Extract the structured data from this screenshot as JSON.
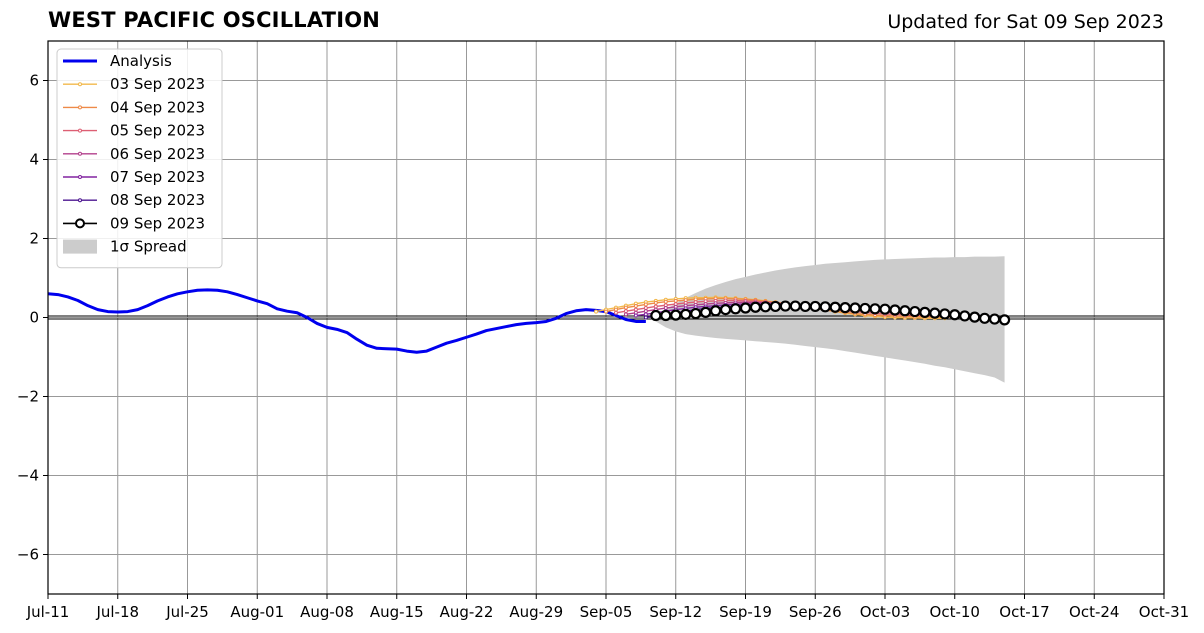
{
  "chart_data": {
    "type": "line",
    "title": "WEST PACIFIC OSCILLATION",
    "subtitle": "Updated for Sat 09 Sep 2023",
    "ylim": [
      -7,
      7
    ],
    "yticks": [
      6,
      4,
      2,
      0,
      -2,
      -4,
      -6
    ],
    "ytick_labels": [
      "6",
      "4",
      "2",
      "0",
      "−2",
      "−4",
      "−6"
    ],
    "xlim": [
      "2023-07-11",
      "2023-10-31"
    ],
    "xtick_labels": [
      "Jul-11",
      "Jul-18",
      "Jul-25",
      "Aug-01",
      "Aug-08",
      "Aug-15",
      "Aug-22",
      "Aug-29",
      "Sep-05",
      "Sep-12",
      "Sep-19",
      "Sep-26",
      "Oct-03",
      "Oct-10",
      "Oct-17",
      "Oct-24",
      "Oct-31"
    ],
    "grid": true,
    "legend_position": "top-left",
    "colors": {
      "analysis": "#0000ee",
      "spread": "#cccccc",
      "grid": "#999999"
    },
    "analysis": {
      "name": "Analysis",
      "dates": [
        "2023-07-11",
        "2023-07-12",
        "2023-07-13",
        "2023-07-14",
        "2023-07-15",
        "2023-07-16",
        "2023-07-17",
        "2023-07-18",
        "2023-07-19",
        "2023-07-20",
        "2023-07-21",
        "2023-07-22",
        "2023-07-23",
        "2023-07-24",
        "2023-07-25",
        "2023-07-26",
        "2023-07-27",
        "2023-07-28",
        "2023-07-29",
        "2023-07-30",
        "2023-07-31",
        "2023-08-01",
        "2023-08-02",
        "2023-08-03",
        "2023-08-04",
        "2023-08-05",
        "2023-08-06",
        "2023-08-07",
        "2023-08-08",
        "2023-08-09",
        "2023-08-10",
        "2023-08-11",
        "2023-08-12",
        "2023-08-13",
        "2023-08-14",
        "2023-08-15",
        "2023-08-16",
        "2023-08-17",
        "2023-08-18",
        "2023-08-19",
        "2023-08-20",
        "2023-08-21",
        "2023-08-22",
        "2023-08-23",
        "2023-08-24",
        "2023-08-25",
        "2023-08-26",
        "2023-08-27",
        "2023-08-28",
        "2023-08-29",
        "2023-08-30",
        "2023-08-31",
        "2023-09-01",
        "2023-09-02",
        "2023-09-03",
        "2023-09-04",
        "2023-09-05",
        "2023-09-06",
        "2023-09-07",
        "2023-09-08",
        "2023-09-09"
      ],
      "values": [
        0.6,
        0.58,
        0.52,
        0.43,
        0.3,
        0.2,
        0.15,
        0.14,
        0.15,
        0.2,
        0.3,
        0.42,
        0.52,
        0.6,
        0.65,
        0.69,
        0.7,
        0.69,
        0.65,
        0.58,
        0.5,
        0.42,
        0.35,
        0.22,
        0.16,
        0.12,
        0.0,
        -0.15,
        -0.25,
        -0.3,
        -0.38,
        -0.55,
        -0.7,
        -0.78,
        -0.79,
        -0.8,
        -0.85,
        -0.88,
        -0.85,
        -0.75,
        -0.65,
        -0.58,
        -0.5,
        -0.42,
        -0.33,
        -0.28,
        -0.23,
        -0.18,
        -0.15,
        -0.13,
        -0.1,
        -0.02,
        0.1,
        0.17,
        0.2,
        0.18,
        0.15,
        0.05,
        -0.05,
        -0.1,
        -0.1
      ]
    },
    "forecasts": [
      {
        "name": "03 Sep 2023",
        "color": "#f2b84b",
        "start": "2023-09-04",
        "values": [
          0.15,
          0.2,
          0.25,
          0.3,
          0.35,
          0.39,
          0.42,
          0.45,
          0.47,
          0.49,
          0.5,
          0.5,
          0.51,
          0.5,
          0.49,
          0.47,
          0.45,
          0.42,
          0.39,
          0.35,
          0.31,
          0.27,
          0.23,
          0.19,
          0.15,
          0.11,
          0.08,
          0.05,
          0.03,
          0.01,
          0.0,
          -0.01,
          -0.01,
          -0.02,
          -0.02,
          -0.02
        ]
      },
      {
        "name": "04 Sep 2023",
        "color": "#ee8a48",
        "start": "2023-09-05",
        "values": [
          0.15,
          0.2,
          0.25,
          0.29,
          0.33,
          0.37,
          0.4,
          0.42,
          0.44,
          0.46,
          0.47,
          0.48,
          0.48,
          0.47,
          0.46,
          0.44,
          0.41,
          0.38,
          0.35,
          0.31,
          0.27,
          0.23,
          0.19,
          0.16,
          0.13,
          0.1,
          0.08,
          0.06,
          0.05,
          0.04,
          0.03,
          0.02,
          0.02,
          0.01,
          0.01,
          0.01
        ]
      },
      {
        "name": "05 Sep 2023",
        "color": "#dd5f73",
        "start": "2023-09-06",
        "values": [
          0.12,
          0.16,
          0.2,
          0.24,
          0.28,
          0.31,
          0.34,
          0.37,
          0.39,
          0.41,
          0.42,
          0.43,
          0.43,
          0.42,
          0.41,
          0.39,
          0.37,
          0.35,
          0.32,
          0.29,
          0.26,
          0.23,
          0.2,
          0.17,
          0.15,
          0.13,
          0.11,
          0.09,
          0.08,
          0.07,
          0.06,
          0.05,
          0.05,
          0.04,
          0.04,
          0.04
        ]
      },
      {
        "name": "06 Sep 2023",
        "color": "#b23f8b",
        "start": "2023-09-07",
        "values": [
          0.08,
          0.12,
          0.16,
          0.2,
          0.24,
          0.27,
          0.3,
          0.32,
          0.34,
          0.36,
          0.37,
          0.38,
          0.38,
          0.38,
          0.37,
          0.36,
          0.34,
          0.32,
          0.3,
          0.28,
          0.26,
          0.24,
          0.22,
          0.2,
          0.18,
          0.16,
          0.14,
          0.12,
          0.11,
          0.1,
          0.09,
          0.08,
          0.07,
          0.06,
          0.06,
          0.05
        ]
      },
      {
        "name": "07 Sep 2023",
        "color": "#8224a0",
        "start": "2023-09-08",
        "values": [
          0.05,
          0.08,
          0.12,
          0.16,
          0.2,
          0.23,
          0.26,
          0.28,
          0.3,
          0.32,
          0.33,
          0.34,
          0.34,
          0.34,
          0.33,
          0.32,
          0.31,
          0.3,
          0.28,
          0.26,
          0.25,
          0.23,
          0.21,
          0.2,
          0.18,
          0.16,
          0.15,
          0.13,
          0.12,
          0.1,
          0.09,
          0.08,
          0.07,
          0.06,
          0.05,
          0.05
        ]
      },
      {
        "name": "08 Sep 2023",
        "color": "#4b1490",
        "start": "2023-09-09",
        "values": [
          0.0,
          0.04,
          0.08,
          0.12,
          0.16,
          0.2,
          0.23,
          0.25,
          0.27,
          0.29,
          0.3,
          0.31,
          0.32,
          0.32,
          0.32,
          0.31,
          0.3,
          0.29,
          0.27,
          0.26,
          0.24,
          0.22,
          0.21,
          0.19,
          0.17,
          0.15,
          0.13,
          0.12,
          0.1,
          0.09,
          0.07,
          0.06,
          0.05,
          0.04,
          0.03,
          0.02
        ]
      },
      {
        "name": "09 Sep 2023",
        "color": "#000000",
        "start": "2023-09-10",
        "markers": true,
        "values": [
          0.05,
          0.05,
          0.06,
          0.08,
          0.1,
          0.13,
          0.17,
          0.2,
          0.22,
          0.24,
          0.26,
          0.27,
          0.28,
          0.29,
          0.29,
          0.28,
          0.28,
          0.27,
          0.26,
          0.25,
          0.24,
          0.23,
          0.22,
          0.21,
          0.19,
          0.17,
          0.15,
          0.13,
          0.11,
          0.09,
          0.07,
          0.04,
          0.01,
          -0.02,
          -0.04,
          -0.06
        ]
      }
    ],
    "spread": {
      "name": "1σ Spread",
      "start": "2023-09-10",
      "upper": [
        0.05,
        0.2,
        0.35,
        0.5,
        0.62,
        0.73,
        0.82,
        0.9,
        0.97,
        1.03,
        1.09,
        1.14,
        1.19,
        1.23,
        1.27,
        1.3,
        1.33,
        1.36,
        1.38,
        1.4,
        1.42,
        1.44,
        1.46,
        1.47,
        1.48,
        1.49,
        1.5,
        1.51,
        1.52,
        1.52,
        1.53,
        1.53,
        1.54,
        1.54,
        1.54,
        1.55
      ],
      "lower": [
        -0.1,
        -0.25,
        -0.35,
        -0.42,
        -0.46,
        -0.49,
        -0.52,
        -0.54,
        -0.56,
        -0.58,
        -0.6,
        -0.62,
        -0.64,
        -0.66,
        -0.69,
        -0.72,
        -0.75,
        -0.78,
        -0.81,
        -0.85,
        -0.89,
        -0.93,
        -0.97,
        -1.01,
        -1.05,
        -1.09,
        -1.13,
        -1.17,
        -1.22,
        -1.26,
        -1.31,
        -1.36,
        -1.41,
        -1.46,
        -1.52,
        -1.65
      ]
    }
  }
}
